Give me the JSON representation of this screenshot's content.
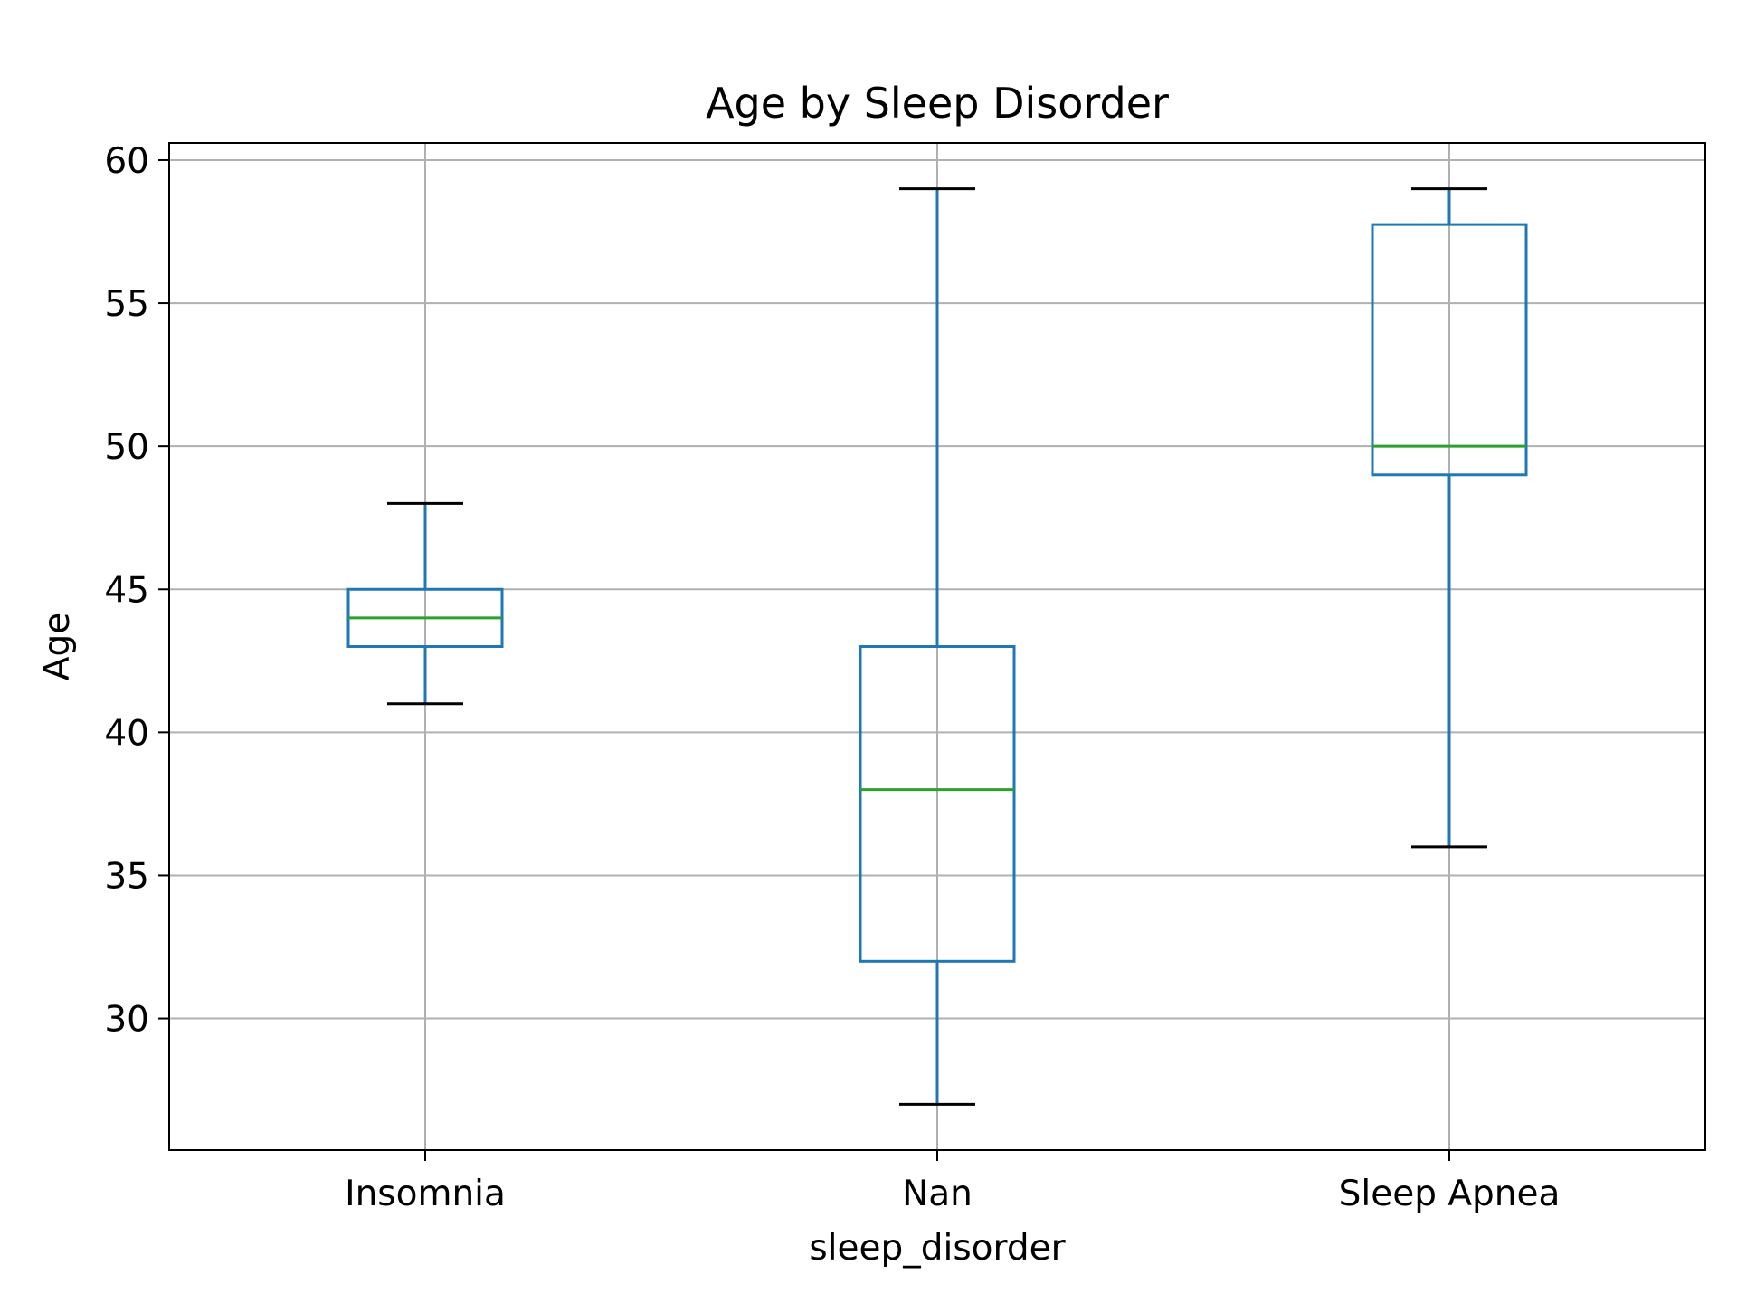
{
  "chart_data": {
    "type": "box",
    "title": "Age by Sleep Disorder",
    "xlabel": "sleep_disorder",
    "ylabel": "Age",
    "categories": [
      "Insomnia",
      "Nan",
      "Sleep Apnea"
    ],
    "boxes": [
      {
        "category": "Insomnia",
        "whisker_low": 41,
        "q1": 43,
        "median": 44,
        "q3": 45,
        "whisker_high": 48
      },
      {
        "category": "Nan",
        "whisker_low": 27,
        "q1": 32,
        "median": 38,
        "q3": 43,
        "whisker_high": 59
      },
      {
        "category": "Sleep Apnea",
        "whisker_low": 36,
        "q1": 49,
        "median": 50,
        "q3": 57.75,
        "whisker_high": 59
      }
    ],
    "y_ticks": [
      30,
      35,
      40,
      45,
      50,
      55,
      60
    ],
    "ylim": [
      25.4,
      60.6
    ],
    "grid": true,
    "colors": {
      "box": "#1f77b4",
      "median": "#2ca02c",
      "whisker_cap": "#000000",
      "grid": "#b0b0b0",
      "axes": "#000000"
    }
  }
}
